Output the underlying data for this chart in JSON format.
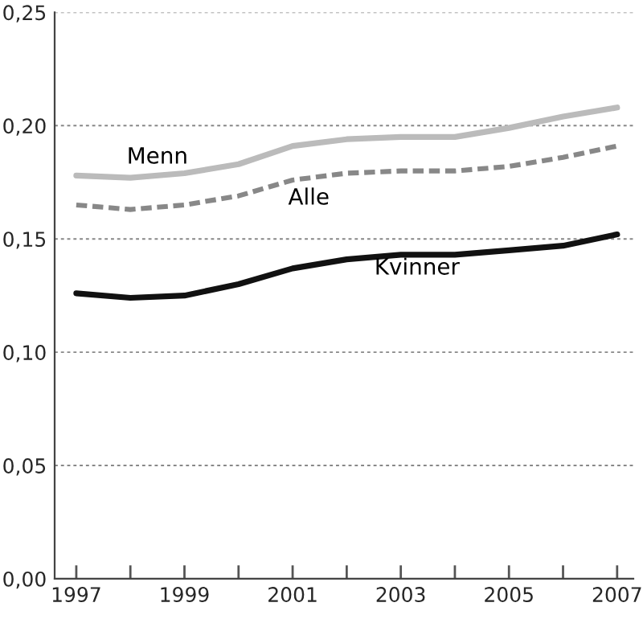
{
  "chart_data": {
    "type": "line",
    "x": [
      1997,
      1998,
      1999,
      2000,
      2001,
      2002,
      2003,
      2004,
      2005,
      2006,
      2007
    ],
    "series": [
      {
        "name": "Menn",
        "color": "#bbbbbb",
        "line_style": "solid",
        "values": [
          0.178,
          0.177,
          0.179,
          0.183,
          0.191,
          0.194,
          0.195,
          0.195,
          0.199,
          0.204,
          0.208
        ]
      },
      {
        "name": "Alle",
        "color": "#888888",
        "line_style": "dashed",
        "values": [
          0.165,
          0.163,
          0.165,
          0.169,
          0.176,
          0.179,
          0.18,
          0.18,
          0.182,
          0.186,
          0.191
        ]
      },
      {
        "name": "Kvinner",
        "color": "#111111",
        "line_style": "solid",
        "values": [
          0.126,
          0.124,
          0.125,
          0.13,
          0.137,
          0.141,
          0.143,
          0.143,
          0.145,
          0.147,
          0.152
        ]
      }
    ],
    "xlim": [
      1996.6,
      2007.3
    ],
    "xticks": [
      1997,
      {
        "value": 1998,
        "label": null
      },
      1999,
      {
        "value": 2000,
        "label": null
      },
      2001,
      {
        "value": 2002,
        "label": null
      },
      2003,
      {
        "value": 2004,
        "label": null
      },
      2005,
      {
        "value": 2006,
        "label": null
      },
      2007
    ],
    "ylim": [
      0,
      0.25
    ],
    "yticks": [
      {
        "value": 0,
        "label": "0,00"
      },
      {
        "value": 0.05,
        "label": "0,05"
      },
      {
        "value": 0.1,
        "label": "0,10"
      },
      {
        "value": 0.15,
        "label": "0,15"
      },
      {
        "value": 0.2,
        "label": "0,20"
      },
      {
        "value": 0.25,
        "label": "0,25"
      }
    ],
    "grid": "y",
    "legend": false,
    "marker": "none"
  }
}
